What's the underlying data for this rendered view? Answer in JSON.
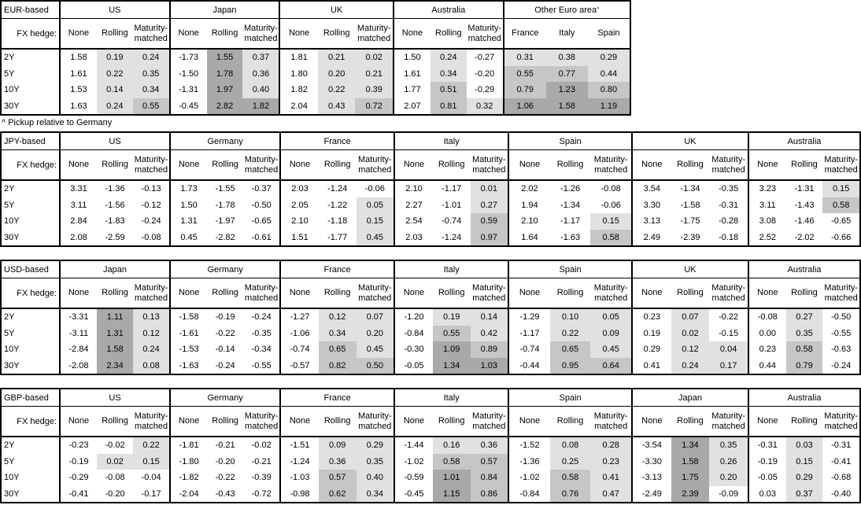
{
  "fx_hedge_label": "FX hedge:",
  "row_labels": [
    "2Y",
    "5Y",
    "10Y",
    "30Y"
  ],
  "footnote": "^ Pickup relative to Germany",
  "heatmap": {
    "unshaded_column": "None",
    "thresholds": [
      0,
      0.5,
      1.0
    ],
    "colors": {
      "level1": "#e1e1e1",
      "level2": "#c6c6c6",
      "level3": "#a9a9a9",
      "none": "#ffffff",
      "border": "#000000"
    }
  },
  "tables": [
    {
      "base_label": "EUR-based",
      "groups": [
        {
          "name": "US",
          "columns": [
            "None",
            "Rolling",
            "Maturity-matched"
          ],
          "rows": [
            [
              "1.58",
              "0.19",
              "0.24"
            ],
            [
              "1.61",
              "0.22",
              "0.35"
            ],
            [
              "1.53",
              "0.14",
              "0.34"
            ],
            [
              "1.63",
              "0.24",
              "0.55"
            ]
          ]
        },
        {
          "name": "Japan",
          "columns": [
            "None",
            "Rolling",
            "Maturity-matched"
          ],
          "rows": [
            [
              "-1.73",
              "1.55",
              "0.37"
            ],
            [
              "-1.50",
              "1.78",
              "0.36"
            ],
            [
              "-1.31",
              "1.97",
              "0.40"
            ],
            [
              "-0.45",
              "2.82",
              "1.82"
            ]
          ]
        },
        {
          "name": "UK",
          "columns": [
            "None",
            "Rolling",
            "Maturity-matched"
          ],
          "rows": [
            [
              "1.81",
              "0.21",
              "0.02"
            ],
            [
              "1.80",
              "0.20",
              "0.21"
            ],
            [
              "1.82",
              "0.22",
              "0.39"
            ],
            [
              "2.04",
              "0.43",
              "0.72"
            ]
          ]
        },
        {
          "name": "Australia",
          "columns": [
            "None",
            "Rolling",
            "Maturity-matched"
          ],
          "rows": [
            [
              "1.50",
              "0.24",
              "-0.27"
            ],
            [
              "1.61",
              "0.34",
              "-0.20"
            ],
            [
              "1.77",
              "0.51",
              "-0.29"
            ],
            [
              "2.07",
              "0.81",
              "0.32"
            ]
          ]
        },
        {
          "name": "Other Euro area",
          "footnote_mark": "^",
          "columns": [
            "France",
            "Italy",
            "Spain"
          ],
          "rows": [
            [
              "0.31",
              "0.38",
              "0.29"
            ],
            [
              "0.55",
              "0.77",
              "0.44"
            ],
            [
              "0.79",
              "1.23",
              "0.80"
            ],
            [
              "1.06",
              "1.58",
              "1.19"
            ]
          ]
        }
      ]
    },
    {
      "base_label": "JPY-based",
      "groups": [
        {
          "name": "US",
          "columns": [
            "None",
            "Rolling",
            "Maturity-matched"
          ],
          "rows": [
            [
              "3.31",
              "-1.36",
              "-0.13"
            ],
            [
              "3.11",
              "-1.56",
              "-0.12"
            ],
            [
              "2.84",
              "-1.83",
              "-0.24"
            ],
            [
              "2.08",
              "-2.59",
              "-0.08"
            ]
          ]
        },
        {
          "name": "Germany",
          "columns": [
            "None",
            "Rolling",
            "Maturity-matched"
          ],
          "rows": [
            [
              "1.73",
              "-1.55",
              "-0.37"
            ],
            [
              "1.50",
              "-1.78",
              "-0.50"
            ],
            [
              "1.31",
              "-1.97",
              "-0.65"
            ],
            [
              "0.45",
              "-2.82",
              "-0.61"
            ]
          ]
        },
        {
          "name": "France",
          "columns": [
            "None",
            "Rolling",
            "Maturity-matched"
          ],
          "rows": [
            [
              "2.03",
              "-1.24",
              "-0.06"
            ],
            [
              "2.05",
              "-1.22",
              "0.05"
            ],
            [
              "2.10",
              "-1.18",
              "0.15"
            ],
            [
              "1.51",
              "-1.77",
              "0.45"
            ]
          ]
        },
        {
          "name": "Italy",
          "columns": [
            "None",
            "Rolling",
            "Maturity-matched"
          ],
          "rows": [
            [
              "2.10",
              "-1.17",
              "0.01"
            ],
            [
              "2.27",
              "-1.01",
              "0.27"
            ],
            [
              "2.54",
              "-0.74",
              "0.59"
            ],
            [
              "2.03",
              "-1.24",
              "0.97"
            ]
          ]
        },
        {
          "name": "Spain",
          "columns": [
            "None",
            "Rolling",
            "Maturity-matched"
          ],
          "rows": [
            [
              "2.02",
              "-1.26",
              "-0.08"
            ],
            [
              "1.94",
              "-1.34",
              "-0.06"
            ],
            [
              "2.10",
              "-1.17",
              "0.15"
            ],
            [
              "1.64",
              "-1.63",
              "0.58"
            ]
          ]
        },
        {
          "name": "UK",
          "columns": [
            "None",
            "Rolling",
            "Maturity-matched"
          ],
          "rows": [
            [
              "3.54",
              "-1.34",
              "-0.35"
            ],
            [
              "3.30",
              "-1.58",
              "-0.31"
            ],
            [
              "3.13",
              "-1.75",
              "-0.28"
            ],
            [
              "2.49",
              "-2.39",
              "-0.18"
            ]
          ]
        },
        {
          "name": "Australia",
          "columns": [
            "None",
            "Rolling",
            "Maturity-matched"
          ],
          "rows": [
            [
              "3.23",
              "-1.31",
              "0.15"
            ],
            [
              "3.11",
              "-1.43",
              "0.58"
            ],
            [
              "3.08",
              "-1.46",
              "-0.65"
            ],
            [
              "2.52",
              "-2.02",
              "-0.66"
            ]
          ]
        }
      ]
    },
    {
      "base_label": "USD-based",
      "groups": [
        {
          "name": "Japan",
          "columns": [
            "None",
            "Rolling",
            "Maturity-matched"
          ],
          "rows": [
            [
              "-3.31",
              "1.11",
              "0.13"
            ],
            [
              "-3.11",
              "1.31",
              "0.12"
            ],
            [
              "-2.84",
              "1.58",
              "0.24"
            ],
            [
              "-2.08",
              "2.34",
              "0.08"
            ]
          ]
        },
        {
          "name": "Germany",
          "columns": [
            "None",
            "Rolling",
            "Maturity-matched"
          ],
          "rows": [
            [
              "-1.58",
              "-0.19",
              "-0.24"
            ],
            [
              "-1.61",
              "-0.22",
              "-0.35"
            ],
            [
              "-1.53",
              "-0.14",
              "-0.34"
            ],
            [
              "-1.63",
              "-0.24",
              "-0.55"
            ]
          ]
        },
        {
          "name": "France",
          "columns": [
            "None",
            "Rolling",
            "Maturity-matched"
          ],
          "rows": [
            [
              "-1.27",
              "0.12",
              "0.07"
            ],
            [
              "-1.06",
              "0.34",
              "0.20"
            ],
            [
              "-0.74",
              "0.65",
              "0.45"
            ],
            [
              "-0.57",
              "0.82",
              "0.50"
            ]
          ]
        },
        {
          "name": "Italy",
          "columns": [
            "None",
            "Rolling",
            "Maturity-matched"
          ],
          "rows": [
            [
              "-1.20",
              "0.19",
              "0.14"
            ],
            [
              "-0.84",
              "0.55",
              "0.42"
            ],
            [
              "-0.30",
              "1.09",
              "0.89"
            ],
            [
              "-0.05",
              "1.34",
              "1.03"
            ]
          ]
        },
        {
          "name": "Spain",
          "columns": [
            "None",
            "Rolling",
            "Maturity-matched"
          ],
          "rows": [
            [
              "-1.29",
              "0.10",
              "0.05"
            ],
            [
              "-1.17",
              "0.22",
              "0.09"
            ],
            [
              "-0.74",
              "0.65",
              "0.45"
            ],
            [
              "-0.44",
              "0.95",
              "0.64"
            ]
          ]
        },
        {
          "name": "UK",
          "columns": [
            "None",
            "Rolling",
            "Maturity-matched"
          ],
          "rows": [
            [
              "0.23",
              "0.07",
              "-0.22"
            ],
            [
              "0.19",
              "0.02",
              "-0.15"
            ],
            [
              "0.29",
              "0.12",
              "0.04"
            ],
            [
              "0.41",
              "0.24",
              "0.17"
            ]
          ]
        },
        {
          "name": "Australia",
          "columns": [
            "None",
            "Rolling",
            "Maturity-matched"
          ],
          "rows": [
            [
              "-0.08",
              "0.27",
              "-0.50"
            ],
            [
              "0.00",
              "0.35",
              "-0.55"
            ],
            [
              "0.23",
              "0.58",
              "-0.63"
            ],
            [
              "0.44",
              "0.79",
              "-0.24"
            ]
          ]
        }
      ]
    },
    {
      "base_label": "GBP-based",
      "groups": [
        {
          "name": "US",
          "columns": [
            "None",
            "Rolling",
            "Maturity-matched"
          ],
          "rows": [
            [
              "-0.23",
              "-0.02",
              "0.22"
            ],
            [
              "-0.19",
              "0.02",
              "0.15"
            ],
            [
              "-0.29",
              "-0.08",
              "-0.04"
            ],
            [
              "-0.41",
              "-0.20",
              "-0.17"
            ]
          ]
        },
        {
          "name": "Germany",
          "columns": [
            "None",
            "Rolling",
            "Maturity-matched"
          ],
          "rows": [
            [
              "-1.81",
              "-0.21",
              "-0.02"
            ],
            [
              "-1.80",
              "-0.20",
              "-0.21"
            ],
            [
              "-1.82",
              "-0.22",
              "-0.39"
            ],
            [
              "-2.04",
              "-0.43",
              "-0.72"
            ]
          ]
        },
        {
          "name": "France",
          "columns": [
            "None",
            "Rolling",
            "Maturity-matched"
          ],
          "rows": [
            [
              "-1.51",
              "0.09",
              "0.29"
            ],
            [
              "-1.24",
              "0.36",
              "0.35"
            ],
            [
              "-1.03",
              "0.57",
              "0.40"
            ],
            [
              "-0.98",
              "0.62",
              "0.34"
            ]
          ]
        },
        {
          "name": "Italy",
          "columns": [
            "None",
            "Rolling",
            "Maturity-matched"
          ],
          "rows": [
            [
              "-1.44",
              "0.16",
              "0.36"
            ],
            [
              "-1.02",
              "0.58",
              "0.57"
            ],
            [
              "-0.59",
              "1.01",
              "0.84"
            ],
            [
              "-0.45",
              "1.15",
              "0.86"
            ]
          ]
        },
        {
          "name": "Spain",
          "columns": [
            "None",
            "Rolling",
            "Maturity-matched"
          ],
          "rows": [
            [
              "-1.52",
              "0.08",
              "0.28"
            ],
            [
              "-1.36",
              "0.25",
              "0.23"
            ],
            [
              "-1.02",
              "0.58",
              "0.41"
            ],
            [
              "-0.84",
              "0.76",
              "0.47"
            ]
          ]
        },
        {
          "name": "Japan",
          "columns": [
            "None",
            "Rolling",
            "Maturity-matched"
          ],
          "rows": [
            [
              "-3.54",
              "1.34",
              "0.35"
            ],
            [
              "-3.30",
              "1.58",
              "0.26"
            ],
            [
              "-3.13",
              "1.75",
              "0.20"
            ],
            [
              "-2.49",
              "2.39",
              "-0.09"
            ]
          ]
        },
        {
          "name": "Australia",
          "columns": [
            "None",
            "Rolling",
            "Maturity-matched"
          ],
          "rows": [
            [
              "-0.31",
              "0.03",
              "-0.31"
            ],
            [
              "-0.19",
              "0.15",
              "-0.41"
            ],
            [
              "-0.05",
              "0.29",
              "-0.68"
            ],
            [
              "0.03",
              "0.37",
              "-0.40"
            ]
          ]
        }
      ]
    }
  ]
}
